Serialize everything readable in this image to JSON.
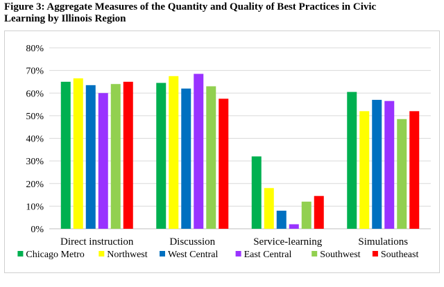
{
  "figure": {
    "title_line1": "Figure 3: Aggregate Measures of the Quantity and Quality of Best Practices in Civic",
    "title_line2": "Learning by Illinois Region"
  },
  "chart_data": {
    "type": "bar",
    "title": "Figure 3: Aggregate Measures of the Quantity and Quality of Best Practices in Civic Learning by Illinois Region",
    "categories": [
      "Direct instruction",
      "Discussion",
      "Service-learning",
      "Simulations"
    ],
    "series": [
      {
        "name": "Chicago Metro",
        "color": "#00b050",
        "values": [
          65,
          64.5,
          32,
          60.5
        ]
      },
      {
        "name": "Northwest",
        "color": "#ffff00",
        "values": [
          66.5,
          67.5,
          18,
          52
        ]
      },
      {
        "name": "West Central",
        "color": "#0070c0",
        "values": [
          63.5,
          62,
          8,
          57
        ]
      },
      {
        "name": "East Central",
        "color": "#9933ff",
        "values": [
          60,
          68.5,
          2,
          56.5
        ]
      },
      {
        "name": "Southwest",
        "color": "#92d050",
        "values": [
          64,
          63,
          12,
          48.5
        ]
      },
      {
        "name": "Southeast",
        "color": "#ff0000",
        "values": [
          65,
          57.5,
          14.5,
          52
        ]
      }
    ],
    "ylim": [
      0,
      80
    ],
    "yticks": [
      "0%",
      "10%",
      "20%",
      "30%",
      "40%",
      "50%",
      "60%",
      "70%",
      "80%"
    ],
    "ytick_values": [
      0,
      10,
      20,
      30,
      40,
      50,
      60,
      70,
      80
    ],
    "xlabel": "",
    "ylabel": "",
    "grid": true,
    "legend_position": "bottom"
  }
}
